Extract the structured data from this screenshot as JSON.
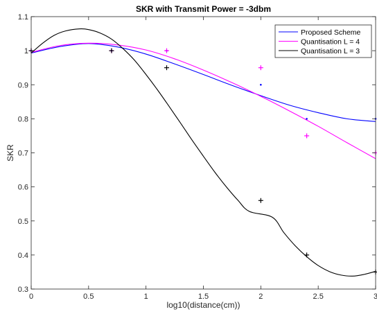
{
  "chart_data": {
    "type": "line",
    "title": "SKR with Transmit Power = -3dbm",
    "xlabel": "log10(distance(cm))",
    "ylabel": "SKR",
    "xlim": [
      0,
      3
    ],
    "ylim": [
      0.3,
      1.1
    ],
    "xticks": [
      0,
      0.5,
      1,
      1.5,
      2,
      2.5,
      3
    ],
    "xtick_labels": [
      "0",
      "0.5",
      "1",
      "1.5",
      "2",
      "2.5",
      "3"
    ],
    "yticks": [
      0.3,
      0.4,
      0.5,
      0.6,
      0.7,
      0.8,
      0.9,
      1,
      1.1
    ],
    "ytick_labels": [
      "0.3",
      "0.4",
      "0.5",
      "0.6",
      "0.7",
      "0.8",
      "0.9",
      "1",
      "1.1"
    ],
    "grid": false,
    "legend_position": "top-right",
    "series": [
      {
        "name": "Proposed Scheme",
        "color": "#0000ff",
        "marker": "dot",
        "points": [
          [
            0,
            1.0
          ],
          [
            0.7,
            1.0
          ],
          [
            1.18,
            1.0
          ],
          [
            2.0,
            0.9
          ],
          [
            2.4,
            0.8
          ],
          [
            3.0,
            0.8
          ]
        ],
        "curve": [
          [
            0,
            0.993
          ],
          [
            0.25,
            1.012
          ],
          [
            0.5,
            1.021
          ],
          [
            0.75,
            1.011
          ],
          [
            1.0,
            0.99
          ],
          [
            1.25,
            0.961
          ],
          [
            1.5,
            0.93
          ],
          [
            1.75,
            0.898
          ],
          [
            2.0,
            0.868
          ],
          [
            2.25,
            0.84
          ],
          [
            2.5,
            0.818
          ],
          [
            2.75,
            0.8
          ],
          [
            3.0,
            0.792
          ]
        ]
      },
      {
        "name": "Quantisation L = 4",
        "color": "#ff00ff",
        "marker": "plus",
        "points": [
          [
            0,
            1.0
          ],
          [
            0.7,
            1.0
          ],
          [
            1.18,
            1.0
          ],
          [
            2.0,
            0.95
          ],
          [
            2.4,
            0.75
          ],
          [
            3.0,
            0.7
          ]
        ],
        "curve": [
          [
            0,
            0.995
          ],
          [
            0.25,
            1.015
          ],
          [
            0.5,
            1.022
          ],
          [
            0.75,
            1.017
          ],
          [
            1.0,
            1.002
          ],
          [
            1.25,
            0.976
          ],
          [
            1.5,
            0.943
          ],
          [
            1.75,
            0.906
          ],
          [
            2.0,
            0.866
          ],
          [
            2.25,
            0.823
          ],
          [
            2.5,
            0.778
          ],
          [
            2.75,
            0.73
          ],
          [
            3.0,
            0.683
          ]
        ]
      },
      {
        "name": "Quantisation L = 3",
        "color": "#000000",
        "marker": "plus",
        "points": [
          [
            0,
            1.0
          ],
          [
            0.7,
            1.0
          ],
          [
            1.18,
            0.95
          ],
          [
            2.0,
            0.56
          ],
          [
            2.4,
            0.4
          ],
          [
            3.0,
            0.35
          ]
        ],
        "curve": [
          [
            0,
            0.993
          ],
          [
            0.1,
            1.022
          ],
          [
            0.2,
            1.045
          ],
          [
            0.3,
            1.058
          ],
          [
            0.42,
            1.064
          ],
          [
            0.5,
            1.062
          ],
          [
            0.6,
            1.052
          ],
          [
            0.7,
            1.034
          ],
          [
            0.8,
            1.006
          ],
          [
            0.9,
            0.972
          ],
          [
            1.0,
            0.93
          ],
          [
            1.1,
            0.885
          ],
          [
            1.2,
            0.837
          ],
          [
            1.3,
            0.788
          ],
          [
            1.4,
            0.738
          ],
          [
            1.5,
            0.69
          ],
          [
            1.6,
            0.643
          ],
          [
            1.7,
            0.6
          ],
          [
            1.8,
            0.561
          ],
          [
            1.9,
            0.528
          ],
          [
            2.0,
            0.56
          ],
          [
            2.1,
            0.511
          ],
          [
            2.2,
            0.466
          ],
          [
            2.3,
            0.427
          ],
          [
            2.4,
            0.395
          ],
          [
            2.5,
            0.369
          ],
          [
            2.6,
            0.351
          ],
          [
            2.7,
            0.341
          ],
          [
            2.8,
            0.338
          ],
          [
            2.9,
            0.343
          ],
          [
            3.0,
            0.352
          ]
        ]
      }
    ]
  }
}
